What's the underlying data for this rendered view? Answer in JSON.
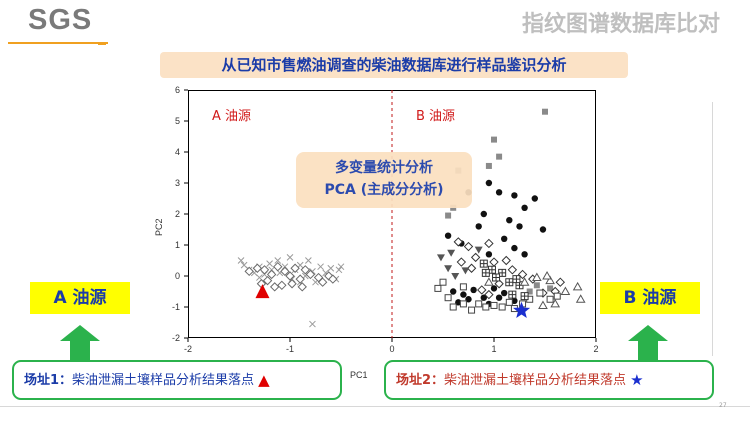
{
  "header": {
    "logo_text": "SGS",
    "title": "指纹图谱数据库比对",
    "accent_color": "#f0a020"
  },
  "banner": {
    "text": "从已知市售燃油调查的柴油数据库进行样品鉴识分析"
  },
  "pca_box": {
    "line1": "多变量统计分析",
    "line2": "PCA (主成分分析)"
  },
  "side": {
    "left_label": "A 油源",
    "right_label": "B 油源",
    "arrow_color": "#2bb24c"
  },
  "sites": [
    {
      "name": "场址1：",
      "desc": "柴油泄漏土壤样品分析结果落点",
      "marker_icon": "red-triangle-icon"
    },
    {
      "name": "场址2：",
      "desc": "柴油泄漏土壤样品分析结果落点",
      "marker_icon": "blue-star-icon"
    }
  ],
  "footer": {
    "page_number": "27"
  },
  "chart_data": {
    "type": "scatter",
    "xlabel": "PC1",
    "ylabel": "PC2",
    "xlim": [
      -2,
      2
    ],
    "ylim": [
      -2,
      6
    ],
    "x_ticks": [
      "-2",
      "-1",
      "0",
      "1",
      "2"
    ],
    "y_ticks": [
      "6",
      "5",
      "4",
      "3",
      "2",
      "1",
      "0",
      "-1",
      "-2"
    ],
    "divider_x": 0,
    "region_labels": [
      "A 油源",
      "B 油源"
    ],
    "series": [
      {
        "marker": "x-cross",
        "color": "#9a9a9a",
        "points": [
          [
            -1.45,
            0.35
          ],
          [
            -1.4,
            0.2
          ],
          [
            -1.35,
            0.1
          ],
          [
            -1.3,
            0.3
          ],
          [
            -1.25,
            0.05
          ],
          [
            -1.2,
            0.4
          ],
          [
            -1.18,
            0.2
          ],
          [
            -1.12,
            0.5
          ],
          [
            -1.1,
            0.1
          ],
          [
            -1.05,
            0.3
          ],
          [
            -1.0,
            0.6
          ],
          [
            -0.98,
            -0.1
          ],
          [
            -0.95,
            0.2
          ],
          [
            -0.9,
            0.35
          ],
          [
            -0.85,
            0.0
          ],
          [
            -0.82,
            0.5
          ],
          [
            -0.78,
            0.15
          ],
          [
            -0.75,
            -0.2
          ],
          [
            -0.7,
            0.3
          ],
          [
            -0.65,
            0.1
          ],
          [
            -0.6,
            0.25
          ],
          [
            -0.55,
            -0.1
          ],
          [
            -0.52,
            0.2
          ],
          [
            -1.48,
            0.5
          ],
          [
            -1.3,
            -0.05
          ],
          [
            -0.9,
            -0.2
          ],
          [
            -0.78,
            -1.55
          ],
          [
            -0.5,
            0.3
          ]
        ]
      },
      {
        "marker": "diamond-open",
        "color": "#6a6a6a",
        "points": [
          [
            -1.4,
            0.15
          ],
          [
            -1.32,
            0.25
          ],
          [
            -1.25,
            0.2
          ],
          [
            -1.18,
            0.05
          ],
          [
            -1.12,
            0.3
          ],
          [
            -1.05,
            0.15
          ],
          [
            -1.0,
            0.0
          ],
          [
            -0.95,
            0.25
          ],
          [
            -0.9,
            -0.1
          ],
          [
            -0.85,
            0.2
          ],
          [
            -0.8,
            0.05
          ],
          [
            -0.72,
            -0.05
          ],
          [
            -0.68,
            -0.2
          ],
          [
            -0.62,
            0.0
          ],
          [
            -0.58,
            -0.1
          ],
          [
            -1.22,
            -0.15
          ],
          [
            -1.08,
            -0.3
          ],
          [
            -0.98,
            -0.25
          ],
          [
            -0.88,
            -0.35
          ],
          [
            -1.28,
            -0.25
          ],
          [
            -1.15,
            -0.35
          ]
        ]
      },
      {
        "marker": "circle-filled",
        "color": "#111111",
        "points": [
          [
            0.9,
            2.0
          ],
          [
            0.95,
            3.0
          ],
          [
            1.05,
            2.7
          ],
          [
            1.2,
            2.6
          ],
          [
            1.3,
            2.2
          ],
          [
            1.4,
            2.5
          ],
          [
            1.25,
            1.6
          ],
          [
            0.75,
            2.7
          ],
          [
            0.85,
            1.6
          ],
          [
            1.1,
            1.2
          ],
          [
            1.2,
            0.9
          ],
          [
            1.3,
            0.7
          ],
          [
            0.95,
            0.7
          ],
          [
            0.55,
            1.3
          ],
          [
            0.68,
            1.05
          ],
          [
            1.15,
            1.8
          ],
          [
            1.48,
            1.5
          ],
          [
            0.6,
            -0.5
          ],
          [
            0.7,
            -0.6
          ],
          [
            0.8,
            -0.45
          ],
          [
            0.9,
            -0.7
          ],
          [
            1.0,
            -0.4
          ],
          [
            1.1,
            -0.55
          ],
          [
            1.2,
            -0.8
          ],
          [
            0.75,
            -0.75
          ],
          [
            0.65,
            -0.85
          ],
          [
            0.95,
            -0.9
          ],
          [
            1.05,
            -0.7
          ]
        ]
      },
      {
        "marker": "square-filled",
        "color": "#8a8a8a",
        "points": [
          [
            1.0,
            4.4
          ],
          [
            0.95,
            3.55
          ],
          [
            0.65,
            3.4
          ],
          [
            1.05,
            3.85
          ],
          [
            1.5,
            5.3
          ],
          [
            1.55,
            -0.4
          ],
          [
            1.42,
            -0.3
          ],
          [
            1.35,
            -0.5
          ],
          [
            0.6,
            2.2
          ],
          [
            0.55,
            1.95
          ]
        ]
      },
      {
        "marker": "diamond-open",
        "color": "#333333",
        "points": [
          [
            0.65,
            1.1
          ],
          [
            0.75,
            0.95
          ],
          [
            0.82,
            0.6
          ],
          [
            0.95,
            1.05
          ],
          [
            1.0,
            0.45
          ],
          [
            1.12,
            0.5
          ],
          [
            1.18,
            0.2
          ],
          [
            1.28,
            0.05
          ],
          [
            1.38,
            -0.1
          ],
          [
            1.05,
            -0.25
          ],
          [
            0.95,
            -0.6
          ],
          [
            0.88,
            -0.45
          ],
          [
            0.78,
            0.25
          ],
          [
            0.68,
            0.45
          ],
          [
            1.48,
            -0.55
          ],
          [
            1.6,
            -0.5
          ],
          [
            1.65,
            -0.2
          ]
        ]
      },
      {
        "marker": "square-open",
        "color": "#444444",
        "points": [
          [
            0.45,
            -0.4
          ],
          [
            0.55,
            -0.7
          ],
          [
            0.6,
            -1.0
          ],
          [
            0.7,
            -0.9
          ],
          [
            0.78,
            -1.1
          ],
          [
            0.85,
            -0.9
          ],
          [
            0.92,
            -1.0
          ],
          [
            1.0,
            -0.95
          ],
          [
            1.08,
            -1.0
          ],
          [
            1.15,
            -0.85
          ],
          [
            1.2,
            -1.05
          ],
          [
            1.28,
            -0.9
          ],
          [
            1.35,
            -0.75
          ],
          [
            1.45,
            -0.55
          ],
          [
            1.55,
            -0.75
          ],
          [
            1.62,
            -0.65
          ],
          [
            0.7,
            -0.35
          ],
          [
            0.5,
            -0.2
          ]
        ]
      },
      {
        "marker": "box-cross",
        "color": "#333333",
        "points": [
          [
            0.9,
            0.4
          ],
          [
            0.98,
            0.2
          ],
          [
            1.08,
            0.1
          ],
          [
            1.15,
            -0.2
          ],
          [
            1.25,
            -0.3
          ],
          [
            1.3,
            -0.65
          ],
          [
            1.18,
            -0.6
          ],
          [
            1.02,
            -0.05
          ],
          [
            0.92,
            0.1
          ],
          [
            1.22,
            -0.1
          ]
        ]
      },
      {
        "marker": "triangle-down",
        "color": "#555555",
        "points": [
          [
            0.55,
            0.25
          ],
          [
            0.62,
            0.0
          ],
          [
            0.72,
            0.18
          ],
          [
            0.85,
            0.85
          ],
          [
            0.48,
            0.6
          ],
          [
            0.58,
            0.75
          ]
        ]
      },
      {
        "marker": "triangle-up-open",
        "color": "#555555",
        "points": [
          [
            0.95,
            -0.2
          ],
          [
            1.42,
            -0.05
          ],
          [
            1.55,
            -0.15
          ],
          [
            1.7,
            -0.5
          ],
          [
            1.82,
            -0.35
          ],
          [
            1.6,
            -0.9
          ],
          [
            1.48,
            -0.95
          ],
          [
            1.3,
            -0.2
          ],
          [
            1.85,
            -0.75
          ],
          [
            1.52,
            0.0
          ]
        ]
      },
      {
        "marker": "triangle-filled",
        "color": "#e00000",
        "points": [
          [
            -1.27,
            -0.52
          ]
        ]
      },
      {
        "marker": "star-filled",
        "color": "#1a2fcf",
        "points": [
          [
            1.27,
            -1.12
          ]
        ]
      }
    ]
  }
}
